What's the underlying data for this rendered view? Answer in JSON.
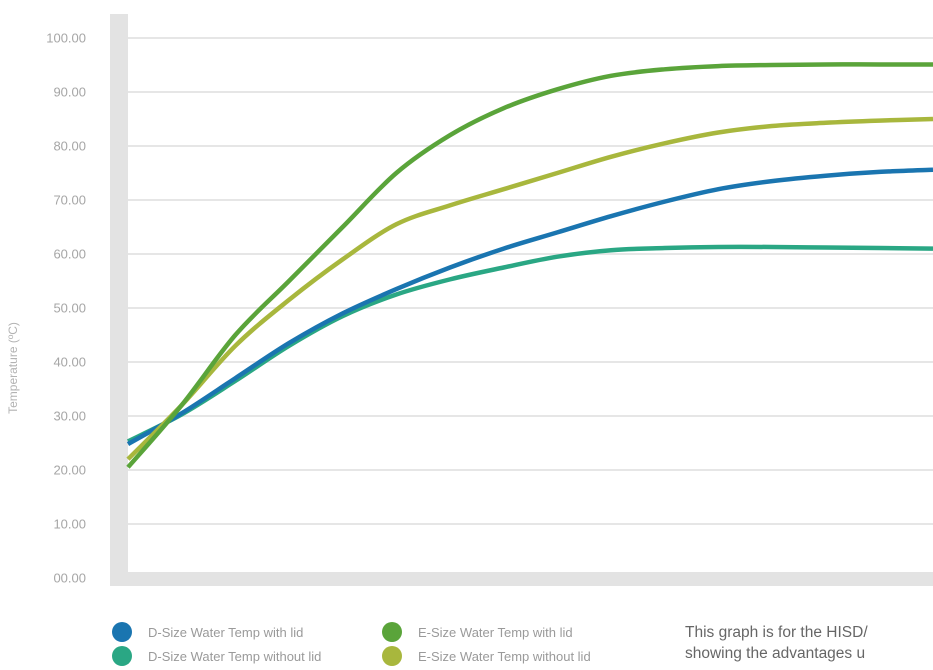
{
  "chart_data": {
    "type": "line",
    "ylabel": "Temperature (ºC)",
    "xlabel": "",
    "ylim": [
      0,
      100
    ],
    "yticks": [
      "00.00",
      "10.00",
      "20.00",
      "30.00",
      "40.00",
      "50.00",
      "60.00",
      "70.00",
      "80.00",
      "90.00",
      "100.00"
    ],
    "grid": true,
    "legend_position": "bottom",
    "x": [
      0,
      1,
      2,
      3,
      4,
      5,
      6,
      7,
      8,
      9,
      10,
      11,
      12,
      13,
      14,
      15
    ],
    "series": [
      {
        "name": "D-Size Water Temp with lid",
        "color": "#1a75b0",
        "values": [
          24.8,
          30.5,
          37.0,
          43.5,
          49.0,
          53.5,
          57.5,
          61.0,
          64.0,
          67.0,
          69.7,
          72.0,
          73.5,
          74.5,
          75.2,
          75.6
        ]
      },
      {
        "name": "D-Size Water Temp without lid",
        "color": "#2aa784",
        "values": [
          25.3,
          30.3,
          36.5,
          43.0,
          48.5,
          52.5,
          55.3,
          57.5,
          59.5,
          60.7,
          61.1,
          61.3,
          61.3,
          61.2,
          61.1,
          61.0
        ]
      },
      {
        "name": "E-Size Water Temp with lid",
        "color": "#5aa43a",
        "values": [
          20.5,
          32.0,
          45.0,
          55.0,
          65.0,
          75.0,
          82.0,
          87.0,
          90.5,
          93.0,
          94.2,
          94.8,
          95.0,
          95.1,
          95.1,
          95.1
        ]
      },
      {
        "name": "E-Size Water Temp without lid",
        "color": "#a8b73d",
        "values": [
          22.0,
          32.0,
          43.0,
          51.5,
          59.0,
          65.5,
          69.0,
          72.0,
          75.0,
          78.0,
          80.5,
          82.5,
          83.7,
          84.3,
          84.7,
          85.0
        ]
      }
    ]
  },
  "caption": {
    "line1": "This graph is for the HISD/",
    "line2": "showing the advantages u"
  }
}
